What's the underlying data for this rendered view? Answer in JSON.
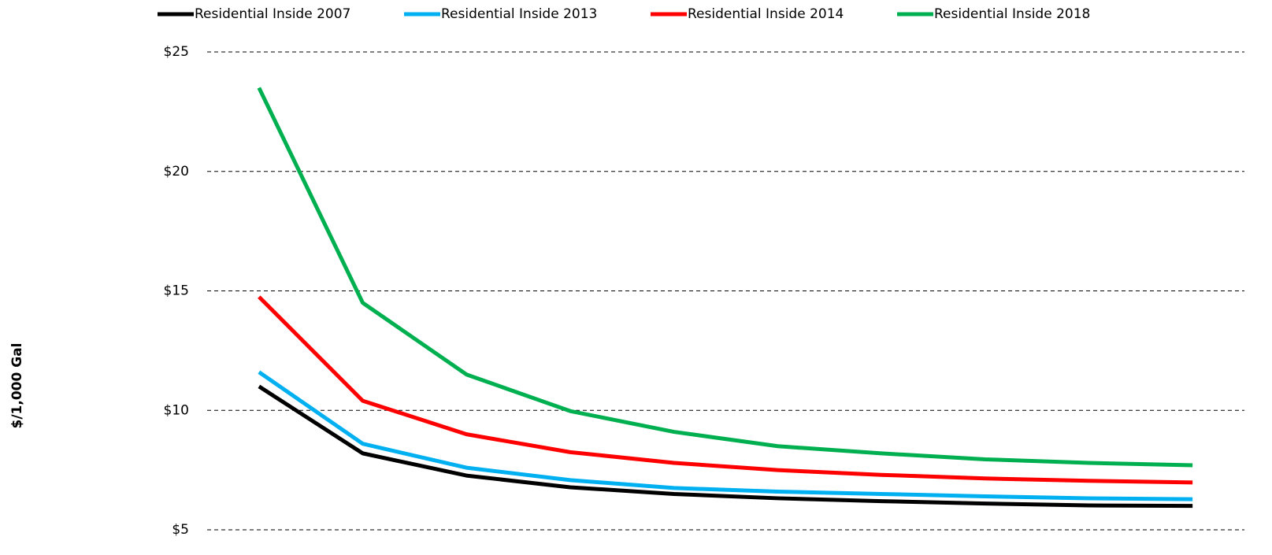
{
  "chart_data": {
    "type": "line",
    "y_label": "$/1,000 Gal",
    "categories": [
      null,
      null,
      null,
      null,
      null,
      null,
      null,
      null,
      null,
      null
    ],
    "series": [
      {
        "name": "Residential Inside 2007",
        "color": "#000000",
        "values": [
          11.0,
          8.2,
          7.27,
          6.78,
          6.5,
          6.32,
          6.2,
          6.1,
          6.02,
          6.0
        ]
      },
      {
        "name": "Residential Inside 2013",
        "color": "#00b0f0",
        "values": [
          11.6,
          8.6,
          7.6,
          7.08,
          6.75,
          6.6,
          6.5,
          6.4,
          6.32,
          6.28
        ]
      },
      {
        "name": "Residential Inside 2014",
        "color": "#ff0000",
        "values": [
          14.75,
          10.4,
          9.0,
          8.25,
          7.8,
          7.5,
          7.3,
          7.15,
          7.05,
          6.98
        ]
      },
      {
        "name": "Residential Inside 2018",
        "color": "#00b050",
        "values": [
          23.5,
          14.5,
          11.5,
          9.97,
          9.1,
          8.5,
          8.2,
          7.95,
          7.8,
          7.7
        ]
      }
    ],
    "ylim": [
      5,
      25
    ],
    "yticks": [
      {
        "value": 5,
        "label": "$5"
      },
      {
        "value": 10,
        "label": "$10"
      },
      {
        "value": 15,
        "label": "$15"
      },
      {
        "value": 20,
        "label": "$20"
      },
      {
        "value": 25,
        "label": "$25"
      }
    ],
    "grid": true,
    "legend": "top"
  }
}
